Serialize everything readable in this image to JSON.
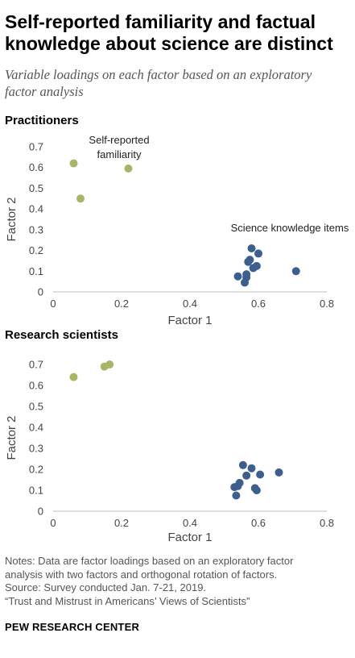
{
  "title": "Self-reported familiarity and factual knowledge about science are distinct",
  "subtitle": "Variable loadings on each factor based on an exploratory factor analysis",
  "chart_data": [
    {
      "type": "scatter",
      "title": "Practitioners",
      "xlabel": "Factor 1",
      "ylabel": "Factor 2",
      "xlim": [
        0,
        0.8
      ],
      "ylim": [
        0,
        0.7
      ],
      "xticks": [
        "0",
        "0.2",
        "0.4",
        "0.6",
        "0.8"
      ],
      "yticks": [
        "0",
        "0.1",
        "0.2",
        "0.3",
        "0.4",
        "0.5",
        "0.6",
        "0.7"
      ],
      "grid": false,
      "series": [
        {
          "name": "Self-reported familiarity",
          "color": "#a7b565",
          "points": [
            [
              0.06,
              0.62
            ],
            [
              0.08,
              0.45
            ],
            [
              0.22,
              0.595
            ]
          ]
        },
        {
          "name": "Science knowledge items",
          "color": "#3d5f8e",
          "points": [
            [
              0.54,
              0.075
            ],
            [
              0.56,
              0.045
            ],
            [
              0.565,
              0.07
            ],
            [
              0.565,
              0.085
            ],
            [
              0.57,
              0.145
            ],
            [
              0.575,
              0.155
            ],
            [
              0.58,
              0.21
            ],
            [
              0.585,
              0.115
            ],
            [
              0.595,
              0.125
            ],
            [
              0.6,
              0.185
            ],
            [
              0.71,
              0.1
            ]
          ]
        }
      ],
      "annotations": [
        "Self-reported familiarity",
        "Science knowledge items"
      ]
    },
    {
      "type": "scatter",
      "title": "Research scientists",
      "xlabel": "Factor 1",
      "ylabel": "Factor 2",
      "xlim": [
        0,
        0.8
      ],
      "ylim": [
        0,
        0.7
      ],
      "xticks": [
        "0",
        "0.2",
        "0.4",
        "0.6",
        "0.8"
      ],
      "yticks": [
        "0",
        "0.1",
        "0.2",
        "0.3",
        "0.4",
        "0.5",
        "0.6",
        "0.7"
      ],
      "grid": false,
      "series": [
        {
          "color": "#a7b565",
          "points": [
            [
              0.06,
              0.64
            ],
            [
              0.15,
              0.69
            ],
            [
              0.165,
              0.7
            ]
          ]
        },
        {
          "color": "#3d5f8e",
          "points": [
            [
              0.53,
              0.115
            ],
            [
              0.535,
              0.075
            ],
            [
              0.54,
              0.12
            ],
            [
              0.545,
              0.135
            ],
            [
              0.555,
              0.22
            ],
            [
              0.565,
              0.17
            ],
            [
              0.58,
              0.205
            ],
            [
              0.59,
              0.11
            ],
            [
              0.595,
              0.1
            ],
            [
              0.605,
              0.175
            ],
            [
              0.66,
              0.185
            ]
          ]
        }
      ]
    }
  ],
  "notes": [
    "Notes: Data are factor loadings based on an exploratory factor",
    "analysis with two factors and orthogonal rotation of factors.",
    "Source: Survey conducted Jan. 7-21, 2019.",
    "“Trust and Mistrust in Americans’ Views of Scientists”"
  ],
  "brand": "PEW RESEARCH CENTER"
}
